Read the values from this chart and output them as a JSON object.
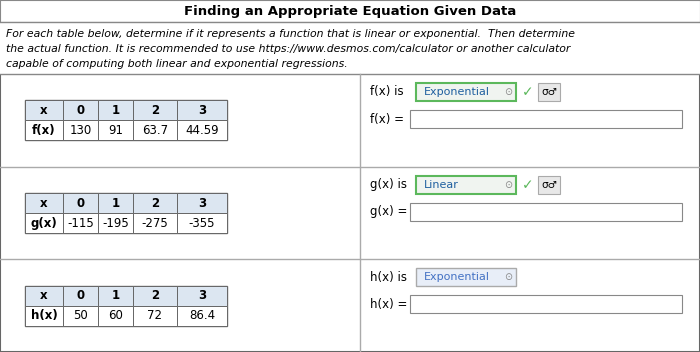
{
  "title": "Finding an Appropriate Equation Given Data",
  "instr_lines": [
    "For each table below, determine if it represents a function that is linear or exponential.  Then determine",
    "the actual function. It is recommended to use https://www.desmos.com/calculator or another calculator",
    "capable of computing both linear and exponential regressions."
  ],
  "table1": {
    "row1": [
      "x",
      "0",
      "1",
      "2",
      "3"
    ],
    "row2": [
      "f(x)",
      "130",
      "91",
      "63.7",
      "44.59"
    ]
  },
  "table2": {
    "row1": [
      "x",
      "0",
      "1",
      "2",
      "3"
    ],
    "row2": [
      "g(x)",
      "-115",
      "-195",
      "-275",
      "-355"
    ]
  },
  "table3": {
    "row1": [
      "x",
      "0",
      "1",
      "2",
      "3"
    ],
    "row2": [
      "h(x)",
      "50",
      "60",
      "72",
      "86.4"
    ]
  },
  "fx_type": "Exponential",
  "gx_type": "Linear",
  "hx_type": "Exponential",
  "fx_check": true,
  "gx_check": true,
  "hx_check": false,
  "table_header_bg": "#dce6f1",
  "table_cell_bg": "#ffffff",
  "dropdown_border_color_green": "#5cb85c",
  "dropdown_bg_green": "#f0f4f0",
  "dropdown_bg_blue": "#e8eef8",
  "dropdown_text_color_green": "#2060a0",
  "dropdown_text_color_blue": "#4472c4",
  "check_color": "#5cb85c",
  "sigma_box_bg": "#e8e8e8",
  "bg_color": "#ffffff",
  "border_color": "#888888",
  "section_border_color": "#aaaaaa"
}
